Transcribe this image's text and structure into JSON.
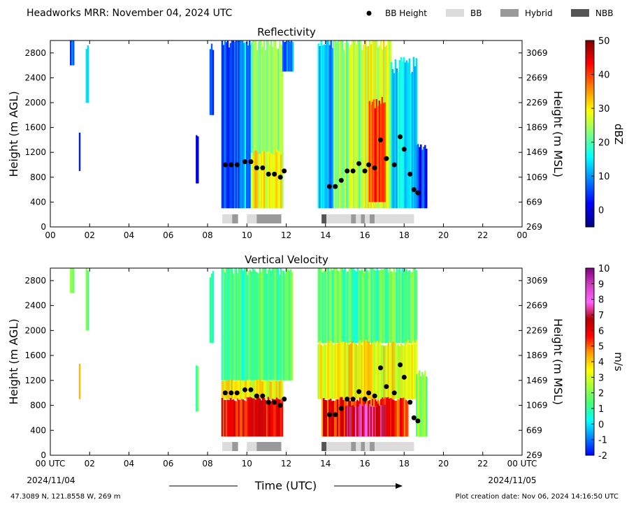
{
  "header": {
    "title": "Headworks MRR:  November 04, 2024 UTC",
    "legend": [
      {
        "label": "BB Height",
        "kind": "dot",
        "color": "#000000"
      },
      {
        "label": "BB",
        "kind": "swatch",
        "color": "#dcdcdc"
      },
      {
        "label": "Hybrid",
        "kind": "swatch",
        "color": "#999999"
      },
      {
        "label": "NBB",
        "kind": "swatch",
        "color": "#555555"
      }
    ]
  },
  "footer": {
    "location": "47.3089 N, 121.8558 W, 269 m",
    "created": "Plot creation date: Nov 06, 2024 14:16:50 UTC",
    "xlabel": "Time (UTC)",
    "start_date": "2024/11/04",
    "end_date": "2024/11/05"
  },
  "chart_data": [
    {
      "type": "heatmap",
      "title": "Reflectivity",
      "ylabel": "Height (m AGL)",
      "y2label": "Height (m MSL)",
      "xlim": [
        0,
        24
      ],
      "ylim": [
        0,
        3000
      ],
      "x_ticks": [
        "00",
        "02",
        "04",
        "06",
        "08",
        "10",
        "12",
        "14",
        "16",
        "18",
        "20",
        "22",
        "00"
      ],
      "y_ticks": [
        0,
        400,
        800,
        1200,
        1600,
        2000,
        2400,
        2800
      ],
      "y2_ticks": [
        269,
        669,
        1069,
        1469,
        1869,
        2269,
        2669,
        3069
      ],
      "colorbar": {
        "label": "dBZ",
        "min": -5,
        "max": 50,
        "ticks": [
          0,
          10,
          20,
          30,
          40,
          50
        ],
        "colors": [
          "#00007f",
          "#0000ff",
          "#0080ff",
          "#00ffff",
          "#80ff80",
          "#ffff00",
          "#ff8000",
          "#ff0000",
          "#7f0000"
        ]
      },
      "echo_regions": [
        {
          "start": 1.0,
          "end": 1.2,
          "top": 3000,
          "bottom": 2600,
          "level": 0.18
        },
        {
          "start": 1.8,
          "end": 1.9,
          "top": 2900,
          "bottom": 2000,
          "level": 0.28
        },
        {
          "start": 1.45,
          "end": 1.5,
          "top": 1500,
          "bottom": 900,
          "level": 0.18
        },
        {
          "start": 7.4,
          "end": 7.5,
          "top": 1450,
          "bottom": 700,
          "level": 0.15
        },
        {
          "start": 8.1,
          "end": 8.3,
          "top": 2900,
          "bottom": 1800,
          "level": 0.16
        },
        {
          "start": 8.7,
          "end": 9.6,
          "top": 3000,
          "bottom": 300,
          "level": 0.2
        },
        {
          "start": 9.6,
          "end": 10.2,
          "top": 3000,
          "bottom": 300,
          "level": 0.3
        },
        {
          "start": 10.2,
          "end": 11.8,
          "top": 3000,
          "bottom": 300,
          "level": 0.5
        },
        {
          "start": 10.2,
          "end": 11.8,
          "top": 1200,
          "bottom": 300,
          "level": 0.62
        },
        {
          "start": 11.8,
          "end": 12.3,
          "top": 3000,
          "bottom": 2500,
          "level": 0.25
        },
        {
          "start": 13.6,
          "end": 14.4,
          "top": 3000,
          "bottom": 300,
          "level": 0.3
        },
        {
          "start": 14.4,
          "end": 16.0,
          "top": 3000,
          "bottom": 300,
          "level": 0.52
        },
        {
          "start": 16.0,
          "end": 17.3,
          "top": 3000,
          "bottom": 300,
          "level": 0.6
        },
        {
          "start": 16.2,
          "end": 17.0,
          "top": 2000,
          "bottom": 400,
          "level": 0.8
        },
        {
          "start": 17.3,
          "end": 18.6,
          "top": 2600,
          "bottom": 300,
          "level": 0.35
        },
        {
          "start": 18.6,
          "end": 19.1,
          "top": 1300,
          "bottom": 300,
          "level": 0.18
        }
      ],
      "bb_height_points": [
        {
          "x": 8.9,
          "y": 1000
        },
        {
          "x": 9.2,
          "y": 1000
        },
        {
          "x": 9.5,
          "y": 1000
        },
        {
          "x": 9.9,
          "y": 1050
        },
        {
          "x": 10.2,
          "y": 1050
        },
        {
          "x": 10.5,
          "y": 950
        },
        {
          "x": 10.8,
          "y": 950
        },
        {
          "x": 11.1,
          "y": 850
        },
        {
          "x": 11.4,
          "y": 850
        },
        {
          "x": 11.7,
          "y": 800
        },
        {
          "x": 11.9,
          "y": 900
        },
        {
          "x": 14.2,
          "y": 650
        },
        {
          "x": 14.5,
          "y": 650
        },
        {
          "x": 14.8,
          "y": 750
        },
        {
          "x": 15.1,
          "y": 900
        },
        {
          "x": 15.4,
          "y": 900
        },
        {
          "x": 15.7,
          "y": 1020
        },
        {
          "x": 16.0,
          "y": 900
        },
        {
          "x": 16.2,
          "y": 1000
        },
        {
          "x": 16.5,
          "y": 950
        },
        {
          "x": 16.8,
          "y": 1400
        },
        {
          "x": 17.1,
          "y": 1100
        },
        {
          "x": 17.5,
          "y": 1000
        },
        {
          "x": 17.8,
          "y": 1450
        },
        {
          "x": 18.0,
          "y": 1250
        },
        {
          "x": 18.3,
          "y": 850
        },
        {
          "x": 18.5,
          "y": 600
        },
        {
          "x": 18.7,
          "y": 550
        }
      ],
      "classification_bars": [
        {
          "start": 8.75,
          "end": 9.25,
          "type": "BB"
        },
        {
          "start": 9.25,
          "end": 9.55,
          "type": "Hybrid"
        },
        {
          "start": 10.0,
          "end": 10.5,
          "type": "BB"
        },
        {
          "start": 10.5,
          "end": 11.75,
          "type": "Hybrid"
        },
        {
          "start": 13.8,
          "end": 14.05,
          "type": "NBB"
        },
        {
          "start": 14.05,
          "end": 15.3,
          "type": "BB"
        },
        {
          "start": 15.3,
          "end": 15.55,
          "type": "Hybrid"
        },
        {
          "start": 15.55,
          "end": 15.8,
          "type": "BB"
        },
        {
          "start": 15.8,
          "end": 16.0,
          "type": "Hybrid"
        },
        {
          "start": 16.0,
          "end": 16.25,
          "type": "BB"
        },
        {
          "start": 16.25,
          "end": 16.5,
          "type": "Hybrid"
        },
        {
          "start": 16.5,
          "end": 18.5,
          "type": "BB"
        }
      ]
    },
    {
      "type": "heatmap",
      "title": "Vertical Velocity",
      "ylabel": "Height (m AGL)",
      "y2label": "Height (m MSL)",
      "xlim": [
        0,
        24
      ],
      "ylim": [
        0,
        3000
      ],
      "x_ticks": [
        "00 UTC",
        "02",
        "04",
        "06",
        "08",
        "10",
        "12",
        "14",
        "16",
        "18",
        "20",
        "22",
        "00 UTC"
      ],
      "y_ticks": [
        0,
        400,
        800,
        1200,
        1600,
        2000,
        2400,
        2800
      ],
      "y2_ticks": [
        269,
        669,
        1069,
        1469,
        1869,
        2269,
        2669,
        3069
      ],
      "colorbar": {
        "label": "m/s",
        "min": -2,
        "max": 10,
        "ticks": [
          -2,
          -1,
          0,
          1,
          2,
          3,
          4,
          5,
          6,
          7,
          8,
          9,
          10
        ],
        "colors": [
          "#0000ff",
          "#0080ff",
          "#00ffff",
          "#40ff80",
          "#a0ff40",
          "#ffff00",
          "#ffa000",
          "#ff0000",
          "#b00000",
          "#ff60ff",
          "#d040c0",
          "#800080"
        ]
      },
      "echo_regions": [
        {
          "start": 1.0,
          "end": 1.2,
          "top": 3000,
          "bottom": 2600,
          "level": 0.3
        },
        {
          "start": 1.8,
          "end": 1.9,
          "top": 3000,
          "bottom": 2000,
          "level": 0.3
        },
        {
          "start": 1.45,
          "end": 1.5,
          "top": 1500,
          "bottom": 900,
          "level": 0.5
        },
        {
          "start": 7.4,
          "end": 7.5,
          "top": 1450,
          "bottom": 700,
          "level": 0.3
        },
        {
          "start": 8.1,
          "end": 8.3,
          "top": 2900,
          "bottom": 1800,
          "level": 0.3
        },
        {
          "start": 8.7,
          "end": 12.3,
          "top": 3000,
          "bottom": 1200,
          "level": 0.28
        },
        {
          "start": 8.7,
          "end": 11.8,
          "top": 1200,
          "bottom": 900,
          "level": 0.45
        },
        {
          "start": 8.7,
          "end": 11.8,
          "top": 900,
          "bottom": 300,
          "level": 0.65
        },
        {
          "start": 13.6,
          "end": 18.6,
          "top": 3000,
          "bottom": 1800,
          "level": 0.28
        },
        {
          "start": 13.6,
          "end": 18.6,
          "top": 1800,
          "bottom": 900,
          "level": 0.45
        },
        {
          "start": 13.8,
          "end": 18.2,
          "top": 900,
          "bottom": 300,
          "level": 0.62
        },
        {
          "start": 15.0,
          "end": 17.0,
          "top": 800,
          "bottom": 300,
          "level": 0.75
        },
        {
          "start": 18.6,
          "end": 19.1,
          "top": 1300,
          "bottom": 300,
          "level": 0.35
        }
      ],
      "bb_height_points": [
        {
          "x": 8.9,
          "y": 1000
        },
        {
          "x": 9.2,
          "y": 1000
        },
        {
          "x": 9.5,
          "y": 1000
        },
        {
          "x": 9.9,
          "y": 1050
        },
        {
          "x": 10.2,
          "y": 1050
        },
        {
          "x": 10.5,
          "y": 950
        },
        {
          "x": 10.8,
          "y": 950
        },
        {
          "x": 11.1,
          "y": 850
        },
        {
          "x": 11.4,
          "y": 850
        },
        {
          "x": 11.7,
          "y": 800
        },
        {
          "x": 11.9,
          "y": 900
        },
        {
          "x": 14.2,
          "y": 650
        },
        {
          "x": 14.5,
          "y": 650
        },
        {
          "x": 14.8,
          "y": 750
        },
        {
          "x": 15.1,
          "y": 900
        },
        {
          "x": 15.4,
          "y": 900
        },
        {
          "x": 15.7,
          "y": 1020
        },
        {
          "x": 16.0,
          "y": 900
        },
        {
          "x": 16.2,
          "y": 1000
        },
        {
          "x": 16.5,
          "y": 950
        },
        {
          "x": 16.8,
          "y": 1400
        },
        {
          "x": 17.1,
          "y": 1100
        },
        {
          "x": 17.5,
          "y": 1000
        },
        {
          "x": 17.8,
          "y": 1450
        },
        {
          "x": 18.0,
          "y": 1250
        },
        {
          "x": 18.3,
          "y": 850
        },
        {
          "x": 18.5,
          "y": 600
        },
        {
          "x": 18.7,
          "y": 550
        }
      ],
      "classification_bars": [
        {
          "start": 8.75,
          "end": 9.25,
          "type": "BB"
        },
        {
          "start": 9.25,
          "end": 9.55,
          "type": "Hybrid"
        },
        {
          "start": 10.0,
          "end": 10.5,
          "type": "BB"
        },
        {
          "start": 10.5,
          "end": 11.75,
          "type": "Hybrid"
        },
        {
          "start": 13.8,
          "end": 14.05,
          "type": "NBB"
        },
        {
          "start": 14.05,
          "end": 15.3,
          "type": "BB"
        },
        {
          "start": 15.3,
          "end": 15.55,
          "type": "Hybrid"
        },
        {
          "start": 15.55,
          "end": 15.8,
          "type": "BB"
        },
        {
          "start": 15.8,
          "end": 16.0,
          "type": "Hybrid"
        },
        {
          "start": 16.0,
          "end": 16.25,
          "type": "BB"
        },
        {
          "start": 16.25,
          "end": 16.5,
          "type": "Hybrid"
        },
        {
          "start": 16.5,
          "end": 18.5,
          "type": "BB"
        }
      ]
    }
  ]
}
